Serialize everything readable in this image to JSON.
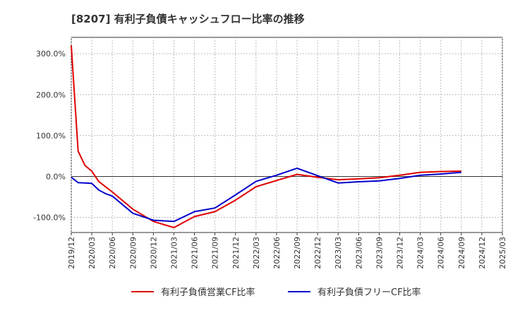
{
  "chart_data": {
    "type": "line",
    "title": "[8207]  有利子負債キャッシュフロー比率の推移",
    "xlabel": "",
    "ylabel": "",
    "x_tick_labels": [
      "2019/12",
      "2020/03",
      "2020/06",
      "2020/09",
      "2020/12",
      "2021/03",
      "2021/06",
      "2021/09",
      "2021/12",
      "2022/03",
      "2022/06",
      "2022/09",
      "2022/12",
      "2023/03",
      "2023/06",
      "2023/09",
      "2023/12",
      "2024/03",
      "2024/06",
      "2024/09",
      "2024/12",
      "2025/03"
    ],
    "y_tick_values": [
      -100,
      0,
      100,
      200,
      300
    ],
    "y_tick_labels": [
      "-100.0%",
      "0.0%",
      "100.0%",
      "200.0%",
      "300.0%"
    ],
    "ylim": [
      -137,
      340
    ],
    "grid": true,
    "legend_position": "bottom",
    "series": [
      {
        "name": "有利子負債営業CF比率",
        "color": "#e00000",
        "x": [
          "2019/12",
          "2020/01",
          "2020/02",
          "2020/03",
          "2020/04",
          "2020/06",
          "2020/09",
          "2020/12",
          "2021/03",
          "2021/06",
          "2021/09",
          "2021/12",
          "2022/03",
          "2022/06",
          "2022/09",
          "2022/12",
          "2023/03",
          "2023/06",
          "2023/09",
          "2023/12",
          "2024/03",
          "2024/06",
          "2024/09"
        ],
        "values": [
          320,
          62,
          27,
          13,
          -12,
          -38,
          -80,
          -110,
          -125,
          -98,
          -86,
          -58,
          -25,
          -10,
          5,
          -2,
          -8,
          -6,
          -3,
          3,
          10,
          12,
          13
        ]
      },
      {
        "name": "有利子負債フリーCF比率",
        "color": "#0000cc",
        "x": [
          "2019/12",
          "2020/01",
          "2020/03",
          "2020/04",
          "2020/05",
          "2020/06",
          "2020/09",
          "2020/12",
          "2021/03",
          "2021/06",
          "2021/09",
          "2021/12",
          "2022/03",
          "2022/06",
          "2022/09",
          "2022/12",
          "2023/03",
          "2023/06",
          "2023/09",
          "2023/12",
          "2024/03",
          "2024/06",
          "2024/09"
        ],
        "values": [
          -2,
          -15,
          -17,
          -33,
          -42,
          -48,
          -90,
          -107,
          -110,
          -86,
          -77,
          -45,
          -12,
          3,
          20,
          2,
          -16,
          -13,
          -11,
          -5,
          3,
          6,
          10
        ]
      }
    ]
  }
}
